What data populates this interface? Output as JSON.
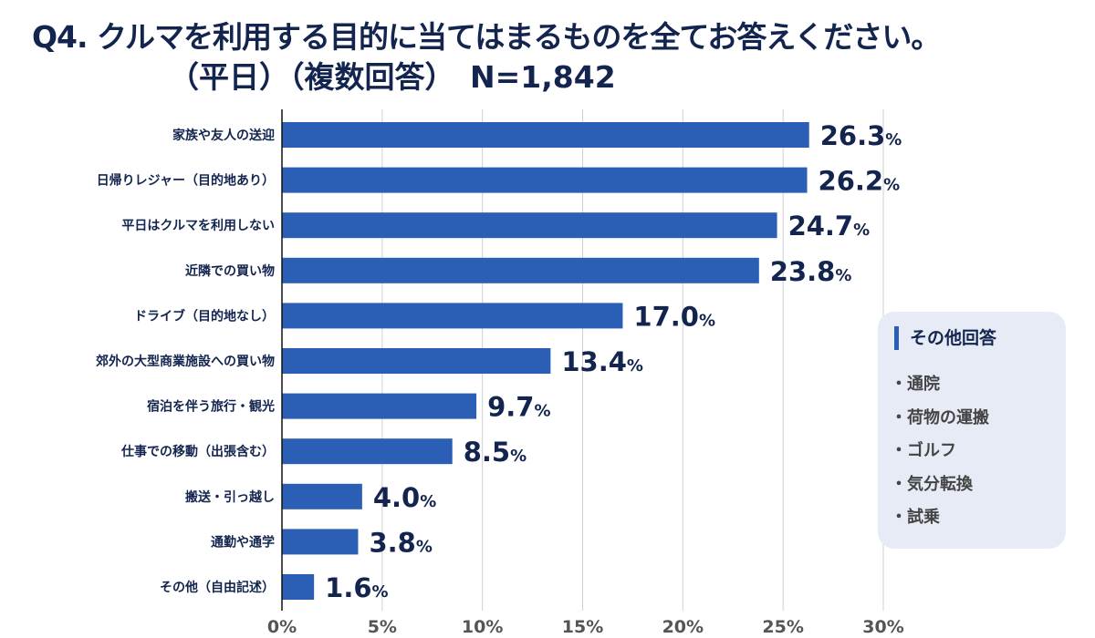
{
  "title": {
    "line1": "Q4. クルマを利用する目的に当てはまるものを全てお答えください。",
    "line2": "（平日）（複数回答）　N=1,842"
  },
  "chart_data": {
    "type": "bar",
    "orientation": "horizontal",
    "categories": [
      "家族や友人の送迎",
      "日帰りレジャー（目的地あり）",
      "平日はクルマを利用しない",
      "近隣での買い物",
      "ドライブ（目的地なし）",
      "郊外の大型商業施設への買い物",
      "宿泊を伴う旅行・観光",
      "仕事での移動（出張含む）",
      "搬送・引っ越し",
      "通勤や通学",
      "その他（自由記述）"
    ],
    "values": [
      26.3,
      26.2,
      24.7,
      23.8,
      17.0,
      13.4,
      9.7,
      8.5,
      4.0,
      3.8,
      1.6
    ],
    "value_labels": [
      "26.3",
      "26.2",
      "24.7",
      "23.8",
      "17.0",
      "13.4",
      "9.7",
      "8.5",
      "4.0",
      "3.8",
      "1.6"
    ],
    "value_suffix": "%",
    "xlim": [
      0,
      30
    ],
    "xticks": [
      "0%",
      "5%",
      "10%",
      "15%",
      "20%",
      "25%",
      "30%"
    ],
    "grid": true,
    "bar_color": "#2a5fb5",
    "text_color": "#13254f"
  },
  "other_answers": {
    "title": "その他回答",
    "items": [
      "・通院",
      "・荷物の運搬",
      "・ゴルフ",
      "・気分転換",
      "・試乗"
    ]
  }
}
